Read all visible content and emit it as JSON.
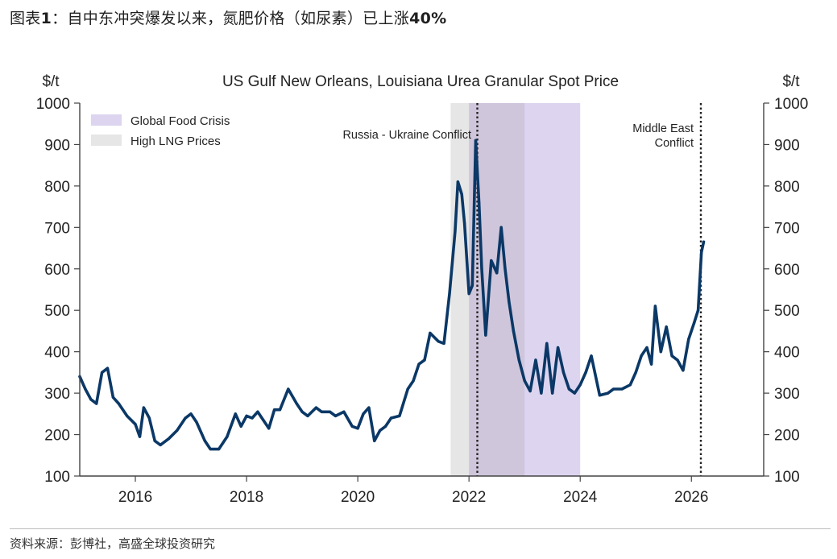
{
  "figure": {
    "label_prefix": "图表",
    "label_number": "1",
    "label_sep": "：",
    "caption_main": "自中东冲突爆发以来，氮肥价格（如尿素）已上涨",
    "caption_emph": "40%",
    "source": "资料来源：彭博社，高盛全球投资研究"
  },
  "chart_data": {
    "type": "line",
    "title": "US Gulf New Orleans, Louisiana Urea Granular Spot Price",
    "ylabel_left": "$/t",
    "ylabel_right": "$/t",
    "xlabel": "",
    "xlim": [
      2015.0,
      2027.3
    ],
    "ylim": [
      100,
      1000
    ],
    "yticks": [
      100,
      200,
      300,
      400,
      500,
      600,
      700,
      800,
      900,
      1000
    ],
    "ytick_labels": [
      "100",
      "200",
      "300",
      "400",
      "500",
      "600",
      "700",
      "800",
      "900",
      "1000"
    ],
    "xticks": [
      2016,
      2018,
      2020,
      2022,
      2024,
      2026
    ],
    "xtick_labels": [
      "2016",
      "2018",
      "2020",
      "2022",
      "2024",
      "2026"
    ],
    "grid": false,
    "legend_position": "top-left",
    "colors": {
      "line": "#0b3866",
      "food_crisis": "#ddd5f0",
      "lng": "#e6e6e6",
      "overlap": "#cfc6db",
      "axis": "#444444",
      "event_line": "#222222"
    },
    "shaded_regions": [
      {
        "name": "High LNG Prices",
        "start": 2021.67,
        "end": 2023.0
      },
      {
        "name": "Global Food Crisis",
        "start": 2022.0,
        "end": 2024.0
      }
    ],
    "legend": [
      "Global Food Crisis",
      "High LNG Prices"
    ],
    "events": [
      {
        "x": 2022.15,
        "label": "Russia - Ukraine Conflict"
      },
      {
        "x": 2026.17,
        "label_line1": "Middle East",
        "label_line2": "Conflict"
      }
    ],
    "series": [
      {
        "name": "Urea Granular Spot Price",
        "x": [
          2015.0,
          2015.1,
          2015.2,
          2015.3,
          2015.4,
          2015.5,
          2015.6,
          2015.7,
          2015.85,
          2016.0,
          2016.08,
          2016.15,
          2016.25,
          2016.35,
          2016.45,
          2016.6,
          2016.75,
          2016.9,
          2017.0,
          2017.1,
          2017.25,
          2017.35,
          2017.5,
          2017.65,
          2017.8,
          2017.9,
          2018.0,
          2018.1,
          2018.2,
          2018.3,
          2018.4,
          2018.5,
          2018.6,
          2018.75,
          2018.9,
          2019.0,
          2019.1,
          2019.25,
          2019.35,
          2019.5,
          2019.6,
          2019.75,
          2019.9,
          2020.0,
          2020.1,
          2020.2,
          2020.3,
          2020.4,
          2020.5,
          2020.6,
          2020.75,
          2020.9,
          2021.0,
          2021.1,
          2021.2,
          2021.3,
          2021.45,
          2021.55,
          2021.65,
          2021.75,
          2021.8,
          2021.87,
          2021.92,
          2022.0,
          2022.06,
          2022.12,
          2022.18,
          2022.23,
          2022.3,
          2022.4,
          2022.5,
          2022.58,
          2022.65,
          2022.72,
          2022.8,
          2022.9,
          2023.0,
          2023.1,
          2023.2,
          2023.3,
          2023.4,
          2023.5,
          2023.6,
          2023.7,
          2023.8,
          2023.9,
          2024.0,
          2024.1,
          2024.2,
          2024.35,
          2024.5,
          2024.6,
          2024.75,
          2024.9,
          2025.0,
          2025.1,
          2025.2,
          2025.28,
          2025.35,
          2025.45,
          2025.55,
          2025.65,
          2025.75,
          2025.85,
          2025.95,
          2026.05,
          2026.12,
          2026.18,
          2026.22
        ],
        "values": [
          340,
          310,
          285,
          275,
          350,
          360,
          290,
          275,
          245,
          225,
          195,
          265,
          240,
          185,
          175,
          190,
          210,
          240,
          250,
          230,
          185,
          165,
          165,
          195,
          250,
          220,
          245,
          240,
          255,
          235,
          215,
          260,
          260,
          310,
          275,
          255,
          245,
          265,
          255,
          255,
          245,
          255,
          220,
          215,
          250,
          265,
          185,
          210,
          220,
          240,
          245,
          310,
          330,
          370,
          380,
          445,
          425,
          420,
          540,
          690,
          810,
          780,
          710,
          540,
          560,
          910,
          760,
          600,
          440,
          620,
          590,
          700,
          600,
          520,
          450,
          380,
          330,
          305,
          380,
          300,
          420,
          300,
          410,
          350,
          310,
          300,
          320,
          350,
          390,
          295,
          300,
          310,
          310,
          320,
          350,
          390,
          410,
          370,
          510,
          400,
          460,
          390,
          380,
          355,
          430,
          470,
          500,
          640,
          665
        ]
      }
    ]
  }
}
